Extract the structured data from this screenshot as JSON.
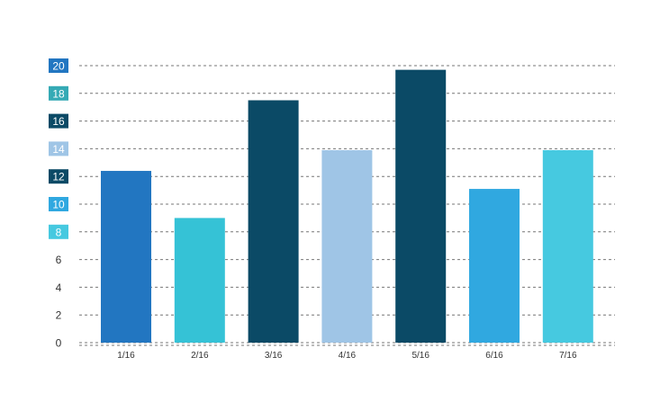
{
  "chart_data": {
    "type": "bar",
    "categories": [
      "1/16",
      "2/16",
      "3/16",
      "4/16",
      "5/16",
      "6/16",
      "7/16"
    ],
    "values": [
      12.4,
      9.0,
      17.5,
      13.9,
      19.7,
      11.1,
      13.9
    ],
    "bar_colors": [
      "#2276c1",
      "#35c2d6",
      "#0b4a66",
      "#9fc5e6",
      "#0b4a66",
      "#30a8e0",
      "#46c9e0"
    ],
    "ylim": [
      0,
      20
    ],
    "yticks": [
      0,
      2,
      4,
      6,
      8,
      10,
      12,
      14,
      16,
      18,
      20
    ],
    "ytick_badges": [
      {
        "value": 8,
        "color": "#46c9e0"
      },
      {
        "value": 10,
        "color": "#30a8e0"
      },
      {
        "value": 12,
        "color": "#0b4a66"
      },
      {
        "value": 14,
        "color": "#9fc5e6"
      },
      {
        "value": 16,
        "color": "#0b4a66"
      },
      {
        "value": 18,
        "color": "#35aab5"
      },
      {
        "value": 20,
        "color": "#2276c1"
      }
    ],
    "grid": true,
    "title": "",
    "xlabel": "",
    "ylabel": ""
  }
}
